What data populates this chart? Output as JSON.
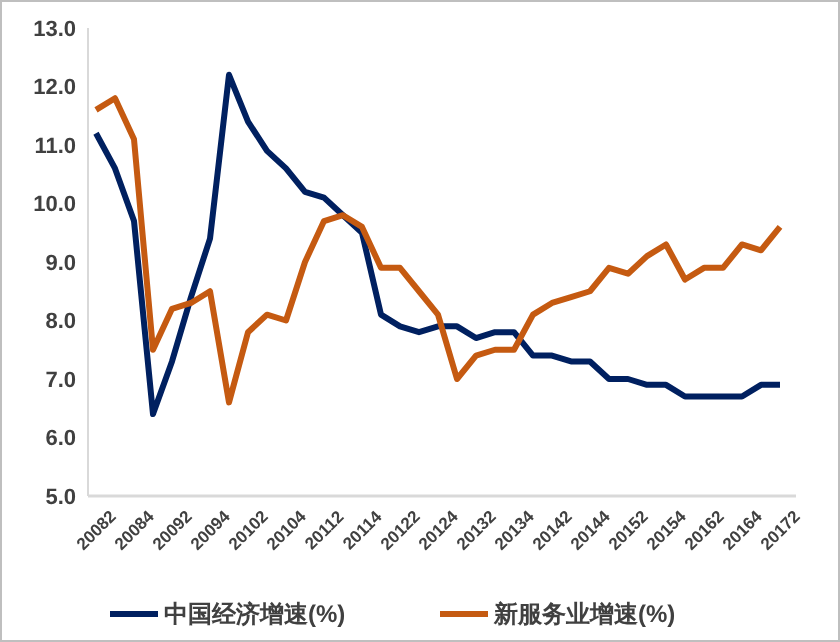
{
  "chart_data": {
    "type": "line",
    "categories": [
      "20082",
      null,
      "20084",
      null,
      "20092",
      null,
      "20094",
      null,
      "20102",
      null,
      "20104",
      null,
      "20112",
      null,
      "20114",
      null,
      "20122",
      null,
      "20124",
      null,
      "20132",
      null,
      "20134",
      null,
      "20142",
      null,
      "20144",
      null,
      "20152",
      null,
      "20154",
      null,
      "20162",
      null,
      "20164",
      null,
      "20172"
    ],
    "series": [
      {
        "name": "中国经济增速(%)",
        "color": "#002060",
        "values": [
          11.2,
          10.6,
          9.7,
          6.4,
          7.3,
          8.4,
          9.4,
          12.2,
          11.4,
          10.9,
          10.6,
          10.2,
          10.1,
          9.8,
          9.5,
          8.1,
          7.9,
          7.8,
          7.9,
          7.9,
          7.7,
          7.8,
          7.8,
          7.4,
          7.4,
          7.3,
          7.3,
          7.0,
          7.0,
          6.9,
          6.9,
          6.7,
          6.7,
          6.7,
          6.7,
          6.9,
          6.9
        ]
      },
      {
        "name": "新服务业增速(%)",
        "color": "#c55a11",
        "values": [
          11.6,
          11.8,
          11.1,
          7.5,
          8.2,
          8.3,
          8.5,
          6.6,
          7.8,
          8.1,
          8.0,
          9.0,
          9.7,
          9.8,
          9.6,
          8.9,
          8.9,
          8.5,
          8.1,
          7.0,
          7.4,
          7.5,
          7.5,
          8.1,
          8.3,
          8.4,
          8.5,
          8.9,
          8.8,
          9.1,
          9.3,
          8.7,
          8.9,
          8.9,
          9.3,
          9.2,
          9.6
        ]
      }
    ],
    "ylim": [
      5,
      13
    ],
    "yticks": [
      {
        "value": 5,
        "label": "5.0"
      },
      {
        "value": 6,
        "label": "6.0"
      },
      {
        "value": 7,
        "label": "7.0"
      },
      {
        "value": 8,
        "label": "8.0"
      },
      {
        "value": 9,
        "label": "9.0"
      },
      {
        "value": 10,
        "label": "10.0"
      },
      {
        "value": 11,
        "label": "11.0"
      },
      {
        "value": 12,
        "label": "12.0"
      },
      {
        "value": 13,
        "label": "13.0"
      }
    ],
    "grid": false,
    "legend": "bottom",
    "marker": "none",
    "line_style": "solid"
  }
}
